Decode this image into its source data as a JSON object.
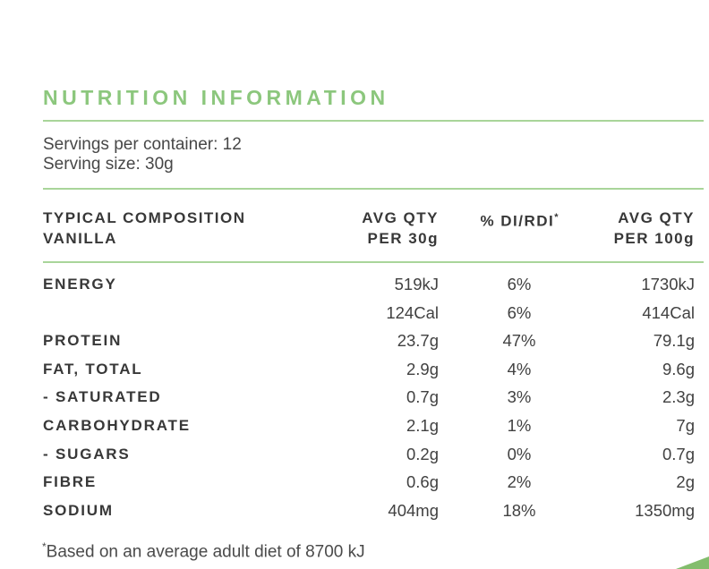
{
  "title": "NUTRITION INFORMATION",
  "servings": {
    "per_container": "Servings per container: 12",
    "size": "Serving size: 30g"
  },
  "table": {
    "header": {
      "col1_line1": "TYPICAL COMPOSITION",
      "col1_line2": "VANILLA",
      "col2_line1": "AVG QTY",
      "col2_line2": "PER 30g",
      "col3_label": "% DI/RDI",
      "col3_sup": "*",
      "col4_line1": "AVG QTY",
      "col4_line2": "PER 100g"
    },
    "rows": [
      {
        "label": "ENERGY",
        "qty30": "519kJ",
        "di": "6%",
        "qty100": "1730kJ"
      },
      {
        "label": "",
        "qty30": "124Cal",
        "di": "6%",
        "qty100": "414Cal"
      },
      {
        "label": "PROTEIN",
        "qty30": "23.7g",
        "di": "47%",
        "qty100": "79.1g"
      },
      {
        "label": "FAT, TOTAL",
        "qty30": "2.9g",
        "di": "4%",
        "qty100": "9.6g"
      },
      {
        "label": "- SATURATED",
        "qty30": "0.7g",
        "di": "3%",
        "qty100": "2.3g"
      },
      {
        "label": "CARBOHYDRATE",
        "qty30": "2.1g",
        "di": "1%",
        "qty100": "7g"
      },
      {
        "label": "- SUGARS",
        "qty30": "0.2g",
        "di": "0%",
        "qty100": "0.7g"
      },
      {
        "label": "FIBRE",
        "qty30": "0.6g",
        "di": "2%",
        "qty100": "2g"
      },
      {
        "label": "SODIUM",
        "qty30": "404mg",
        "di": "18%",
        "qty100": "1350mg"
      }
    ]
  },
  "footnote": {
    "sup": "*",
    "text": "Based on an average adult diet of 8700 kJ"
  },
  "colors": {
    "accent_green": "#8cc77d",
    "rule_green": "#a9d59a",
    "wedge_green": "#83bd6d",
    "text_dark": "#3b3b3b"
  }
}
